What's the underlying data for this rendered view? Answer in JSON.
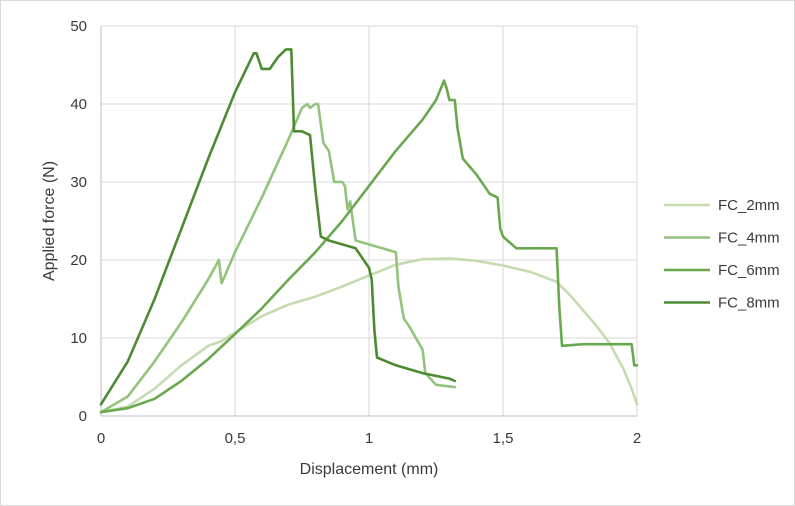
{
  "chart_data": {
    "type": "line",
    "xlabel": "Displacement (mm)",
    "ylabel": "Applied force (N)",
    "xlim": [
      0,
      2
    ],
    "ylim": [
      0,
      50
    ],
    "x_ticks": [
      0,
      0.5,
      1,
      1.5,
      2
    ],
    "x_tick_labels": [
      "0",
      "0,5",
      "1",
      "1,5",
      "2"
    ],
    "y_ticks": [
      0,
      10,
      20,
      30,
      40,
      50
    ],
    "y_tick_labels": [
      "0",
      "10",
      "20",
      "30",
      "40",
      "50"
    ],
    "grid": "vertical and horizontal major gridlines",
    "legend_position": "right",
    "series": [
      {
        "name": "FC_2mm",
        "color": "#c5dcb0",
        "points": [
          [
            0,
            0.5
          ],
          [
            0.1,
            1.2
          ],
          [
            0.2,
            3.5
          ],
          [
            0.3,
            6.5
          ],
          [
            0.4,
            9.0
          ],
          [
            0.45,
            9.6
          ],
          [
            0.5,
            10.7
          ],
          [
            0.6,
            12.8
          ],
          [
            0.7,
            14.3
          ],
          [
            0.8,
            15.3
          ],
          [
            0.9,
            16.6
          ],
          [
            1.0,
            18.0
          ],
          [
            1.1,
            19.4
          ],
          [
            1.2,
            20.1
          ],
          [
            1.3,
            20.2
          ],
          [
            1.4,
            19.9
          ],
          [
            1.5,
            19.3
          ],
          [
            1.6,
            18.5
          ],
          [
            1.7,
            17.2
          ],
          [
            1.75,
            15.5
          ],
          [
            1.8,
            13.5
          ],
          [
            1.85,
            11.5
          ],
          [
            1.9,
            9.2
          ],
          [
            1.95,
            6.0
          ],
          [
            1.98,
            3.5
          ],
          [
            2.0,
            1.5
          ]
        ]
      },
      {
        "name": "FC_4mm",
        "color": "#93c47d",
        "points": [
          [
            0,
            0.5
          ],
          [
            0.1,
            2.5
          ],
          [
            0.2,
            7.0
          ],
          [
            0.3,
            12.0
          ],
          [
            0.4,
            17.5
          ],
          [
            0.44,
            20.0
          ],
          [
            0.45,
            17.0
          ],
          [
            0.5,
            21.0
          ],
          [
            0.6,
            28.0
          ],
          [
            0.7,
            35.5
          ],
          [
            0.75,
            39.5
          ],
          [
            0.77,
            40.0
          ],
          [
            0.78,
            39.5
          ],
          [
            0.8,
            40.0
          ],
          [
            0.81,
            40.0
          ],
          [
            0.83,
            35.0
          ],
          [
            0.85,
            34.0
          ],
          [
            0.87,
            30.0
          ],
          [
            0.9,
            30.0
          ],
          [
            0.91,
            29.5
          ],
          [
            0.92,
            26.5
          ],
          [
            0.93,
            27.5
          ],
          [
            0.95,
            22.5
          ],
          [
            1.0,
            22.0
          ],
          [
            1.05,
            21.5
          ],
          [
            1.1,
            21.0
          ],
          [
            1.11,
            16.5
          ],
          [
            1.13,
            12.5
          ],
          [
            1.15,
            11.5
          ],
          [
            1.2,
            8.5
          ],
          [
            1.21,
            5.5
          ],
          [
            1.25,
            4.0
          ],
          [
            1.3,
            3.8
          ],
          [
            1.32,
            3.7
          ]
        ]
      },
      {
        "name": "FC_6mm",
        "color": "#6aa84f",
        "points": [
          [
            0,
            0.5
          ],
          [
            0.1,
            1.0
          ],
          [
            0.2,
            2.2
          ],
          [
            0.3,
            4.5
          ],
          [
            0.4,
            7.3
          ],
          [
            0.5,
            10.5
          ],
          [
            0.6,
            13.8
          ],
          [
            0.7,
            17.5
          ],
          [
            0.8,
            21.0
          ],
          [
            0.9,
            25.0
          ],
          [
            1.0,
            29.5
          ],
          [
            1.1,
            34.0
          ],
          [
            1.2,
            38.0
          ],
          [
            1.25,
            40.5
          ],
          [
            1.28,
            43.0
          ],
          [
            1.29,
            42.0
          ],
          [
            1.3,
            40.5
          ],
          [
            1.32,
            40.5
          ],
          [
            1.33,
            37.0
          ],
          [
            1.35,
            33.0
          ],
          [
            1.4,
            31.0
          ],
          [
            1.45,
            28.5
          ],
          [
            1.48,
            28.0
          ],
          [
            1.49,
            24.0
          ],
          [
            1.5,
            23.0
          ],
          [
            1.55,
            21.5
          ],
          [
            1.6,
            21.5
          ],
          [
            1.65,
            21.5
          ],
          [
            1.7,
            21.5
          ],
          [
            1.71,
            14.0
          ],
          [
            1.72,
            9.0
          ],
          [
            1.8,
            9.2
          ],
          [
            1.9,
            9.2
          ],
          [
            1.98,
            9.2
          ],
          [
            1.99,
            6.5
          ],
          [
            2.0,
            6.5
          ]
        ]
      },
      {
        "name": "FC_8mm",
        "color": "#4d8a33",
        "points": [
          [
            0,
            1.5
          ],
          [
            0.1,
            7.0
          ],
          [
            0.2,
            15.0
          ],
          [
            0.3,
            24.0
          ],
          [
            0.4,
            33.0
          ],
          [
            0.5,
            41.5
          ],
          [
            0.57,
            46.5
          ],
          [
            0.58,
            46.5
          ],
          [
            0.6,
            44.5
          ],
          [
            0.63,
            44.5
          ],
          [
            0.66,
            46.0
          ],
          [
            0.69,
            47.0
          ],
          [
            0.71,
            47.0
          ],
          [
            0.72,
            36.5
          ],
          [
            0.75,
            36.5
          ],
          [
            0.78,
            36.0
          ],
          [
            0.8,
            29.0
          ],
          [
            0.82,
            23.0
          ],
          [
            0.85,
            22.5
          ],
          [
            0.9,
            22.0
          ],
          [
            0.95,
            21.5
          ],
          [
            1.0,
            19.0
          ],
          [
            1.01,
            17.5
          ],
          [
            1.02,
            11.0
          ],
          [
            1.03,
            7.5
          ],
          [
            1.1,
            6.5
          ],
          [
            1.2,
            5.5
          ],
          [
            1.3,
            4.8
          ],
          [
            1.32,
            4.5
          ]
        ]
      }
    ]
  }
}
